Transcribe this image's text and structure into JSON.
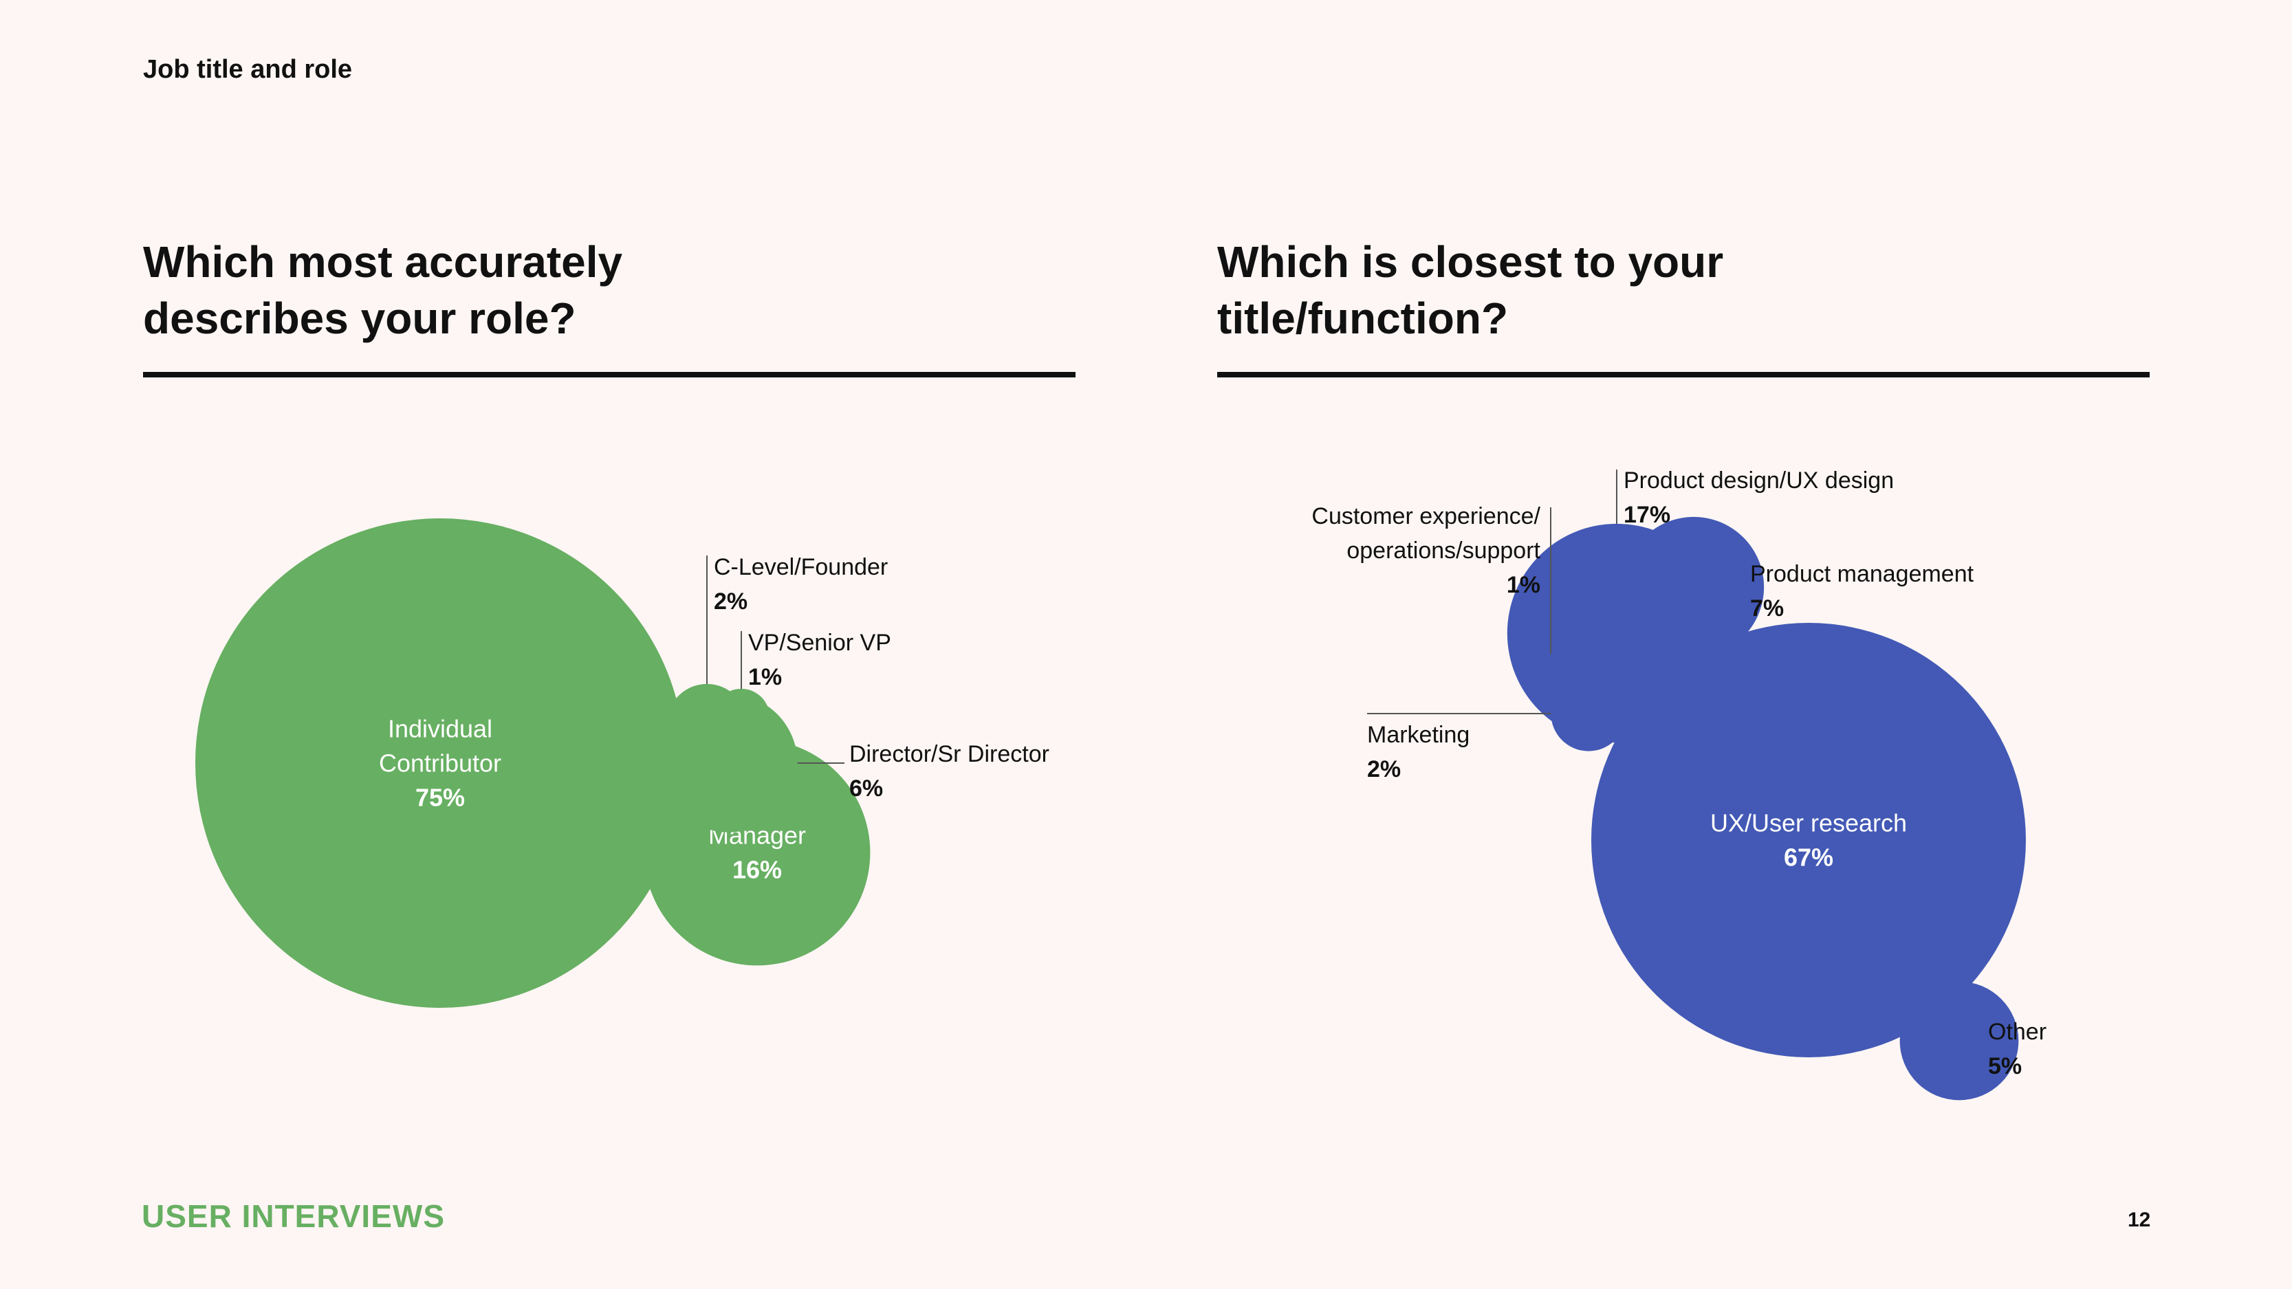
{
  "header": {
    "section_title": "Job title and role"
  },
  "footer": {
    "brand": "USER INTERVIEWS",
    "page_number": "12"
  },
  "colors": {
    "green": "#67AF62",
    "blue": "#4359B5",
    "text": "#111111",
    "background": "#FDF6F4"
  },
  "chart_data": [
    {
      "type": "bubble",
      "title_lines": [
        "Which most accurately",
        "describes your role?"
      ],
      "color": "#67AF62",
      "items": [
        {
          "name": "Individual Contributor",
          "label_lines": [
            "Individual",
            "Contributor"
          ],
          "value": 75,
          "display": "75%",
          "label": "inside"
        },
        {
          "name": "Manager",
          "label_lines": [
            "Manager"
          ],
          "value": 16,
          "display": "16%",
          "label": "inside"
        },
        {
          "name": "Director/Sr Director",
          "label_lines": [
            "Director/Sr Director"
          ],
          "value": 6,
          "display": "6%",
          "label": "right"
        },
        {
          "name": "C-Level/Founder",
          "label_lines": [
            "C-Level/Founder"
          ],
          "value": 2,
          "display": "2%",
          "label": "above"
        },
        {
          "name": "VP/Senior VP",
          "label_lines": [
            "VP/Senior VP"
          ],
          "value": 1,
          "display": "1%",
          "label": "above"
        }
      ]
    },
    {
      "type": "bubble",
      "title_lines": [
        "Which is closest to your",
        "title/function?"
      ],
      "color": "#4359B5",
      "items": [
        {
          "name": "UX/User research",
          "label_lines": [
            "UX/User research"
          ],
          "value": 67,
          "display": "67%",
          "label": "inside"
        },
        {
          "name": "Product design/UX design",
          "label_lines": [
            "Product design/UX design"
          ],
          "value": 17,
          "display": "17%",
          "label": "above"
        },
        {
          "name": "Product management",
          "label_lines": [
            "Product management"
          ],
          "value": 7,
          "display": "7%",
          "label": "right"
        },
        {
          "name": "Other",
          "label_lines": [
            "Other"
          ],
          "value": 5,
          "display": "5%",
          "label": "right"
        },
        {
          "name": "Marketing",
          "label_lines": [
            "Marketing"
          ],
          "value": 2,
          "display": "2%",
          "label": "left"
        },
        {
          "name": "Customer experience/operations/support",
          "label_lines": [
            "Customer experience/",
            "operations/support"
          ],
          "value": 1,
          "display": "1%",
          "label": "left"
        }
      ]
    }
  ]
}
